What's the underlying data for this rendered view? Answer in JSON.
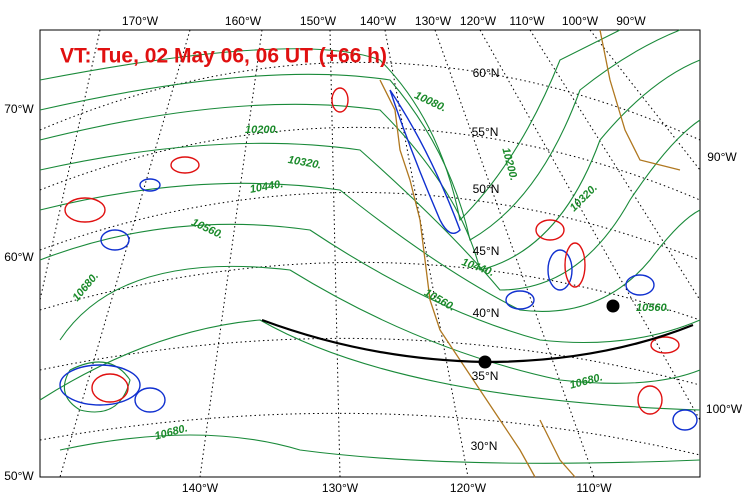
{
  "title": "VT:  Tue, 02 May 06, 06 UT (+66 h)",
  "top_labels": [
    "170°W",
    "160°W",
    "150°W",
    "140°W",
    "130°W",
    "120°W",
    "110°W",
    "100°W",
    "90°W"
  ],
  "bottom_labels": [
    "140°W",
    "130°W",
    "120°W",
    "110°W"
  ],
  "left_labels": [
    "70°W",
    "60°W",
    "50°W"
  ],
  "right_labels": [
    "90°W",
    "100°W"
  ],
  "lat_labels": [
    "60°N",
    "55°N",
    "50°N",
    "45°N",
    "40°N",
    "35°N",
    "30°N"
  ],
  "contour_labels": [
    "10080.",
    "10200.",
    "10320.",
    "10440.",
    "10560.",
    "10680.",
    "10560.",
    "10680.",
    "10680.",
    "10560.",
    "10200.",
    "10320.",
    "10440."
  ]
}
